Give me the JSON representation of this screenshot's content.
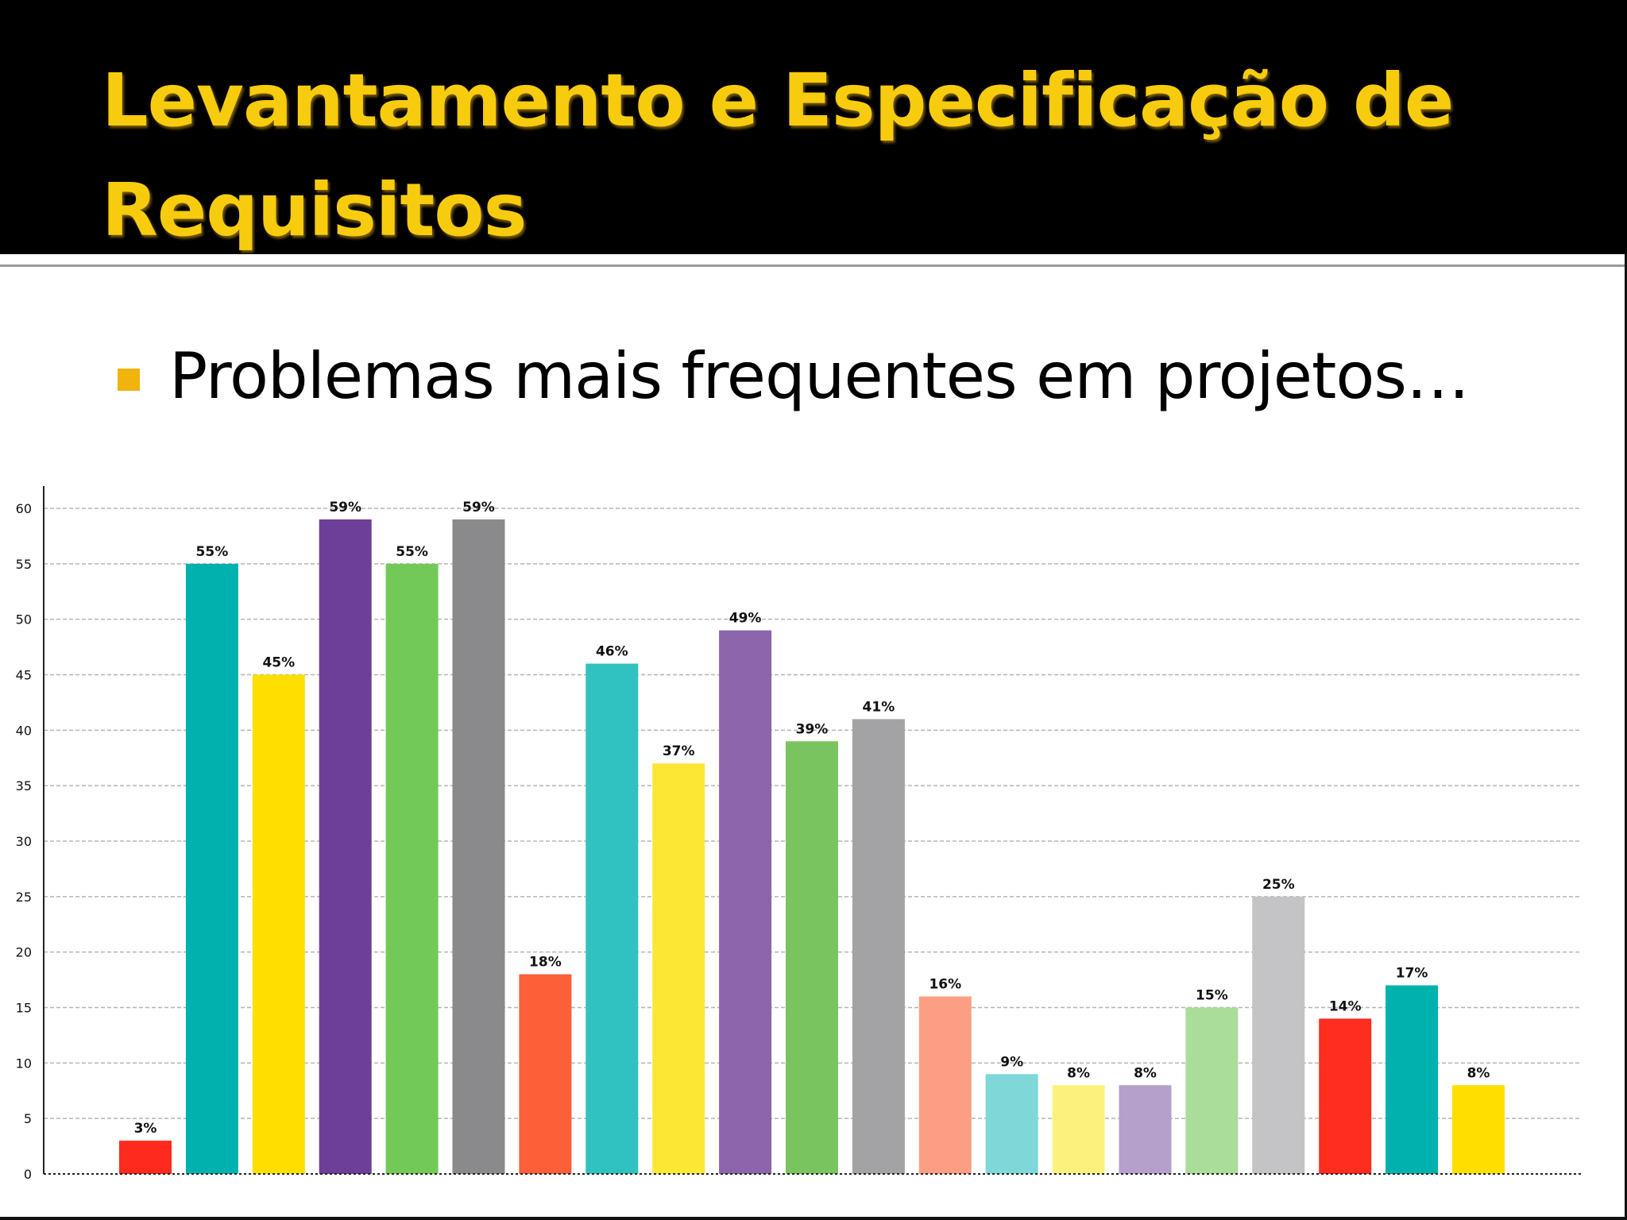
{
  "slide": {
    "title": "Levantamento e Especificação de Requisitos",
    "bullet": "Problemas mais frequentes em projetos…",
    "colors": {
      "title_bg": "#000000",
      "title_text": "#f7cc0e",
      "bullet": "#f0b40c"
    }
  },
  "chart_data": {
    "type": "bar",
    "title": "",
    "xlabel": "",
    "ylabel": "",
    "ylim": [
      0,
      60
    ],
    "yticks": [
      0,
      5,
      10,
      15,
      20,
      25,
      30,
      35,
      40,
      45,
      50,
      55,
      60
    ],
    "grid": true,
    "values": [
      3,
      55,
      45,
      59,
      55,
      59,
      18,
      46,
      37,
      49,
      39,
      41,
      16,
      9,
      8,
      8,
      15,
      25,
      14,
      17,
      8
    ],
    "labels": [
      "3%",
      "55%",
      "45%",
      "59%",
      "55%",
      "59%",
      "18%",
      "46%",
      "37%",
      "49%",
      "39%",
      "41%",
      "16%",
      "9%",
      "8%",
      "8%",
      "15%",
      "25%",
      "14%",
      "17%",
      "8%"
    ],
    "colors": [
      "#ff2a1e",
      "#00b1ae",
      "#ffde00",
      "#6d3f98",
      "#72c957",
      "#8a898b",
      "#fd5f38",
      "#30c2c0",
      "#fde735",
      "#8c66ad",
      "#79c45e",
      "#a3a2a4",
      "#fc9e83",
      "#7fd8d7",
      "#fdf17e",
      "#b4a0cb",
      "#aadc9a",
      "#c4c3c5",
      "#ff2c20",
      "#00b1ae",
      "#ffde00"
    ]
  }
}
